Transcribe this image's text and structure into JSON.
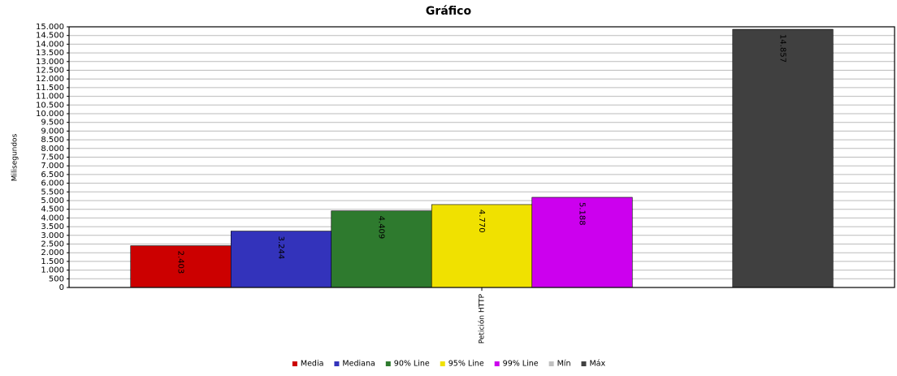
{
  "chart_data": {
    "type": "bar",
    "title": "Gráfico",
    "y_label": "Milisegundos",
    "categories": [
      "Petición HTTP"
    ],
    "series": [
      {
        "name": "Media",
        "color": "#cc0000",
        "values": [
          2403
        ],
        "value_labels": [
          "2.403"
        ]
      },
      {
        "name": "Mediana",
        "color": "#3333bb",
        "values": [
          3244
        ],
        "value_labels": [
          "3.244"
        ]
      },
      {
        "name": "90% Line",
        "color": "#2e7a2e",
        "values": [
          4409
        ],
        "value_labels": [
          "4.409"
        ]
      },
      {
        "name": "95% Line",
        "color": "#f0e100",
        "values": [
          4770
        ],
        "value_labels": [
          "4.770"
        ]
      },
      {
        "name": "99% Line",
        "color": "#cc00ee",
        "values": [
          5188
        ],
        "value_labels": [
          "5.188"
        ]
      },
      {
        "name": "Mín",
        "color": "#c0c0c0",
        "values": [
          0
        ],
        "value_labels": [
          null
        ]
      },
      {
        "name": "Máx",
        "color": "#404040",
        "values": [
          14857
        ],
        "value_labels": [
          "14.857"
        ]
      }
    ],
    "ylim": [
      0,
      15000
    ],
    "yticks": [
      0,
      500,
      {
        "value": 1000,
        "label": "1.000"
      },
      {
        "value": 1500,
        "label": "1.500"
      },
      {
        "value": 2000,
        "label": "2.000"
      },
      {
        "value": 2500,
        "label": "2.500"
      },
      {
        "value": 3000,
        "label": "3.000"
      },
      {
        "value": 3500,
        "label": "3.500"
      },
      {
        "value": 4000,
        "label": "4.000"
      },
      {
        "value": 4500,
        "label": "4.500"
      },
      {
        "value": 5000,
        "label": "5.000"
      },
      {
        "value": 5500,
        "label": "5.500"
      },
      {
        "value": 6000,
        "label": "6.000"
      },
      {
        "value": 6500,
        "label": "6.500"
      },
      {
        "value": 7000,
        "label": "7.000"
      },
      {
        "value": 7500,
        "label": "7.500"
      },
      {
        "value": 8000,
        "label": "8.000"
      },
      {
        "value": 8500,
        "label": "8.500"
      },
      {
        "value": 9000,
        "label": "9.000"
      },
      {
        "value": 9500,
        "label": "9.500"
      },
      {
        "value": 10000,
        "label": "10.000"
      },
      {
        "value": 10500,
        "label": "10.500"
      },
      {
        "value": 11000,
        "label": "11.000"
      },
      {
        "value": 11500,
        "label": "11.500"
      },
      {
        "value": 12000,
        "label": "12.000"
      },
      {
        "value": 12500,
        "label": "12.500"
      },
      {
        "value": 13000,
        "label": "13.000"
      },
      {
        "value": 13500,
        "label": "13.500"
      },
      {
        "value": 14000,
        "label": "14.000"
      },
      {
        "value": 14500,
        "label": "14.500"
      },
      {
        "value": 15000,
        "label": "15.000"
      }
    ],
    "grid": true
  }
}
